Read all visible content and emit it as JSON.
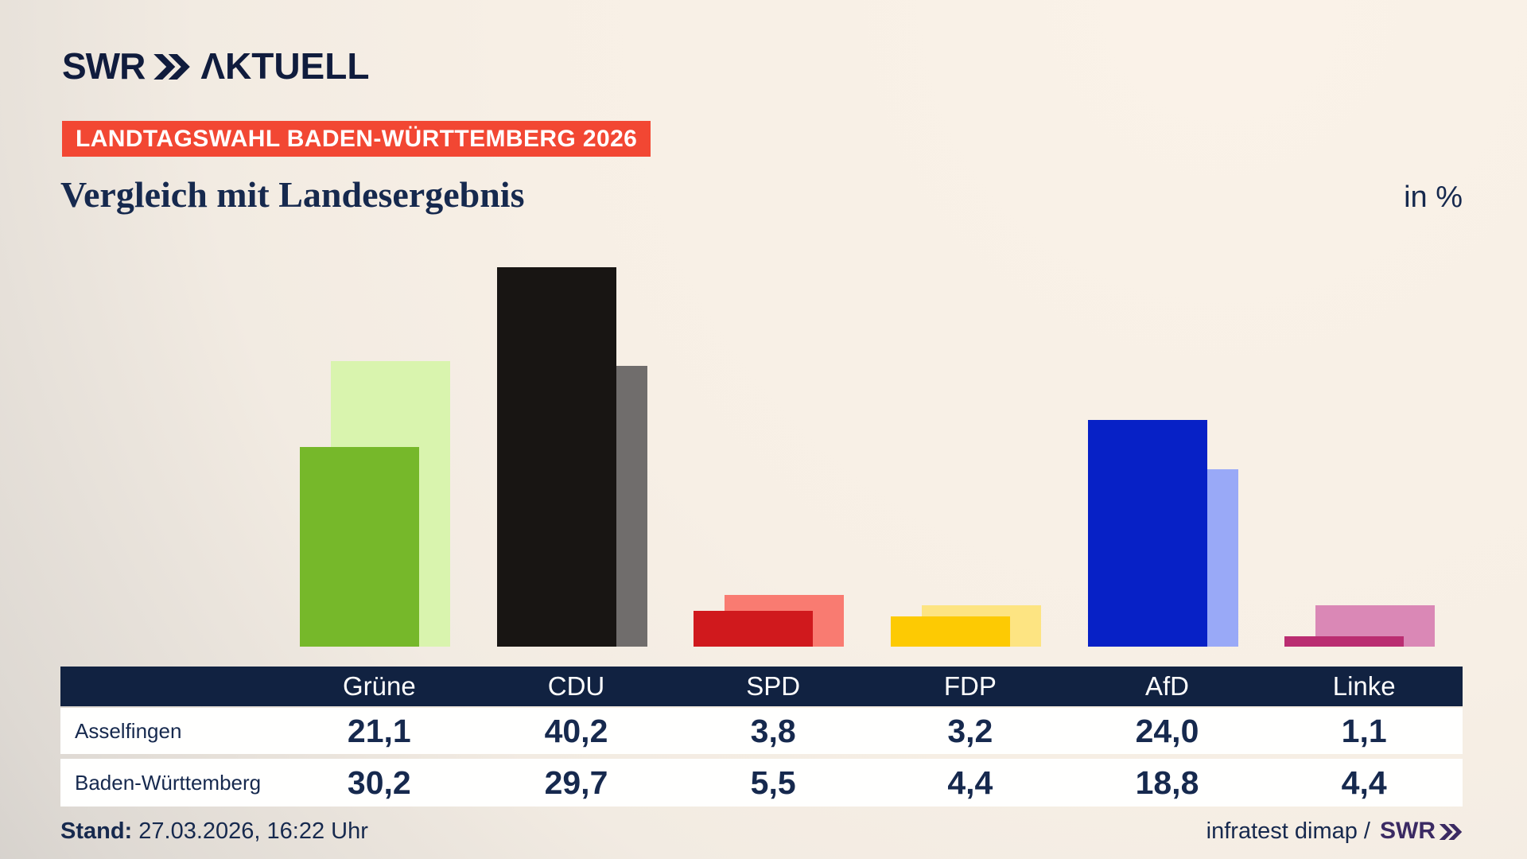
{
  "brand": {
    "swr": "SWR",
    "aktuell": "ΛKTUELL"
  },
  "badge": {
    "label": "LANDTAGSWAHL BADEN-WÜRTTEMBERG 2026",
    "bg_color": "#f24733"
  },
  "title": "Vergleich mit Landesergebnis",
  "unit_label": "in %",
  "chart_data": {
    "type": "bar",
    "categories": [
      "Grüne",
      "CDU",
      "SPD",
      "FDP",
      "AfD",
      "Linke"
    ],
    "series": [
      {
        "name": "Asselfingen",
        "layer": "front",
        "values": [
          21.1,
          40.2,
          3.8,
          3.2,
          24.0,
          1.1
        ],
        "colors": [
          "#76b82a",
          "#181513",
          "#d0191d",
          "#fdca03",
          "#0721c6",
          "#ba2d71"
        ]
      },
      {
        "name": "Baden-Württemberg",
        "layer": "back",
        "values": [
          30.2,
          29.7,
          5.5,
          4.4,
          18.8,
          4.4
        ],
        "colors": [
          "#d9f4ae",
          "#706d6c",
          "#f97b71",
          "#fde482",
          "#99a9f7",
          "#da88b6"
        ]
      }
    ],
    "ylabel": "in %",
    "ylim": [
      0,
      43.2
    ],
    "gridlines": false,
    "legend_position": "none",
    "title": "Vergleich mit Landesergebnis"
  },
  "table": {
    "columns": [
      "Grüne",
      "CDU",
      "SPD",
      "FDP",
      "AfD",
      "Linke"
    ],
    "rows": [
      {
        "label": "Asselfingen",
        "values": [
          "21,1",
          "40,2",
          "3,8",
          "3,2",
          "24,0",
          "1,1"
        ]
      },
      {
        "label": "Baden-Württemberg",
        "values": [
          "30,2",
          "29,7",
          "5,5",
          "4,4",
          "18,8",
          "4,4"
        ]
      }
    ],
    "header_bg": "#112241",
    "text_color": "#16294e"
  },
  "footer": {
    "stand_label": "Stand:",
    "stand_value": "27.03.2026, 16:22 Uhr",
    "source_text": "infratest dimap /",
    "source_logo": "SWR"
  }
}
